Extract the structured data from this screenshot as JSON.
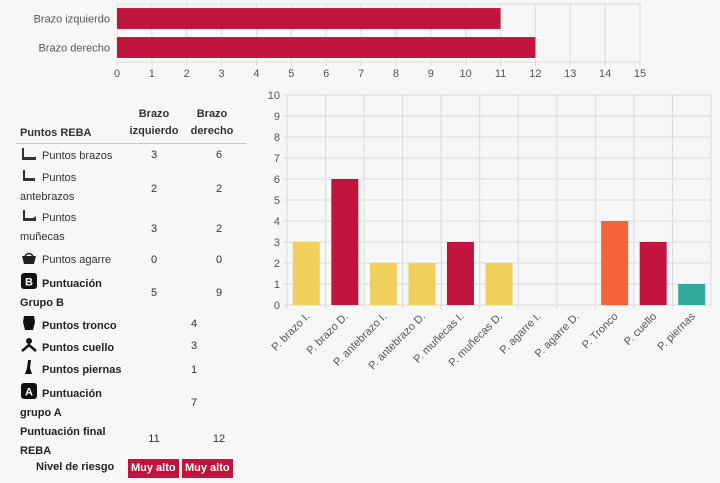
{
  "chart_data": [
    {
      "type": "bar",
      "orientation": "horizontal",
      "categories": [
        "Brazo izquierdo",
        "Brazo derecho"
      ],
      "values": [
        11,
        12
      ],
      "xlim": [
        0,
        15
      ],
      "x_ticks": [
        0,
        1,
        2,
        3,
        4,
        5,
        6,
        7,
        8,
        9,
        10,
        11,
        12,
        13,
        14,
        15
      ],
      "grid": true,
      "bar_color": "#c0143c"
    },
    {
      "type": "bar",
      "categories": [
        "P. brazo I.",
        "P. brazo D.",
        "P. antebrazo I.",
        "P. antebrazo D.",
        "P. muñecas I.",
        "P. muñecas D.",
        "P. agarre I.",
        "P. agarre D.",
        "P. Tronco",
        "P. cuello",
        "P. piernas"
      ],
      "values": [
        3,
        6,
        2,
        2,
        3,
        2,
        0,
        0,
        4,
        3,
        1
      ],
      "colors": [
        "#f0cf5c",
        "#c0143c",
        "#f0cf5c",
        "#f0cf5c",
        "#c0143c",
        "#f0cf5c",
        "#f0cf5c",
        "#f0cf5c",
        "#f4623a",
        "#c0143c",
        "#2fa99a"
      ],
      "ylim": [
        0,
        10
      ],
      "y_ticks": [
        0,
        1,
        2,
        3,
        4,
        5,
        6,
        7,
        8,
        9,
        10
      ],
      "grid": true
    }
  ],
  "table": {
    "header": "Puntos REBA",
    "col_left": [
      "Brazo",
      "izquierdo"
    ],
    "col_right": [
      "Brazo",
      "derecho"
    ],
    "rows": [
      {
        "icon": "arm-icon",
        "label": [
          "Puntos brazos"
        ],
        "left": "3",
        "right": "6"
      },
      {
        "icon": "forearm-icon",
        "label": [
          "Puntos",
          "antebrazos"
        ],
        "left": "2",
        "right": "2"
      },
      {
        "icon": "wrist-icon",
        "label": [
          "Puntos",
          "muñecas"
        ],
        "left": "3",
        "right": "2"
      },
      {
        "icon": "basket-icon",
        "label": [
          "Puntos agarre"
        ],
        "left": "0",
        "right": "0"
      },
      {
        "icon": "letter-b-icon",
        "label": [
          "Puntuación",
          "Grupo B"
        ],
        "left": "5",
        "right": "9",
        "bold": true
      }
    ],
    "merged_rows": [
      {
        "icon": "trunk-icon",
        "label": "Puntos tronco",
        "value": "4"
      },
      {
        "icon": "neck-icon",
        "label": "Puntos cuello",
        "value": "3"
      },
      {
        "icon": "legs-icon",
        "label": "Puntos piernas",
        "value": "1"
      },
      {
        "icon": "letter-a-icon",
        "label": [
          "Puntuación",
          "grupo A"
        ],
        "value": "7"
      }
    ],
    "final": {
      "label": [
        "Puntuación final",
        "REBA"
      ],
      "left": "11",
      "right": "12"
    },
    "risk": {
      "label": "Nivel de riesgo",
      "left": "Muy alto",
      "right": "Muy alto",
      "color": "#c0143c"
    }
  }
}
